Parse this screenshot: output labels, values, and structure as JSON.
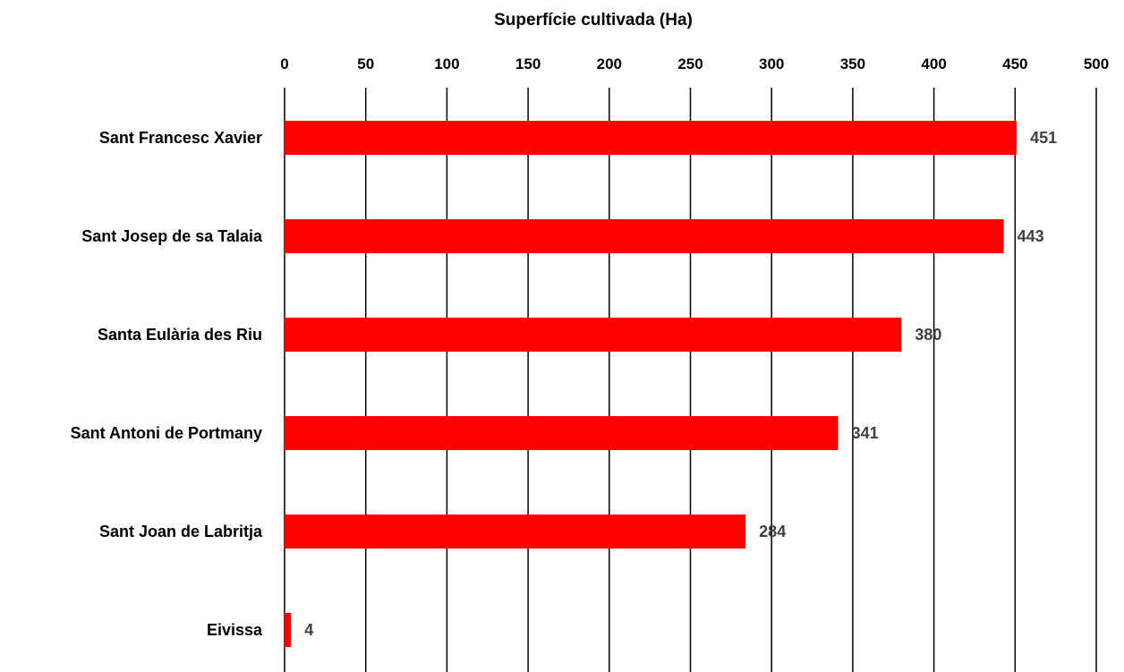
{
  "chart_data": {
    "type": "bar",
    "orientation": "horizontal",
    "xlabel": "Superfície cultivada (Ha)",
    "categories": [
      "Sant Francesc Xavier",
      "Sant Josep de sa Talaia",
      "Santa Eulària des Riu",
      "Sant Antoni de Portmany",
      "Sant Joan de Labritja",
      "Eivissa"
    ],
    "values": [
      451,
      443,
      380,
      341,
      284,
      4
    ],
    "xlim": [
      0,
      500
    ],
    "xticks": [
      0,
      50,
      100,
      150,
      200,
      250,
      300,
      350,
      400,
      450,
      500
    ],
    "x_axis_position": "top",
    "grid": true,
    "data_labels": true,
    "bar_color": "#ff0000",
    "label_color": "#404040"
  }
}
